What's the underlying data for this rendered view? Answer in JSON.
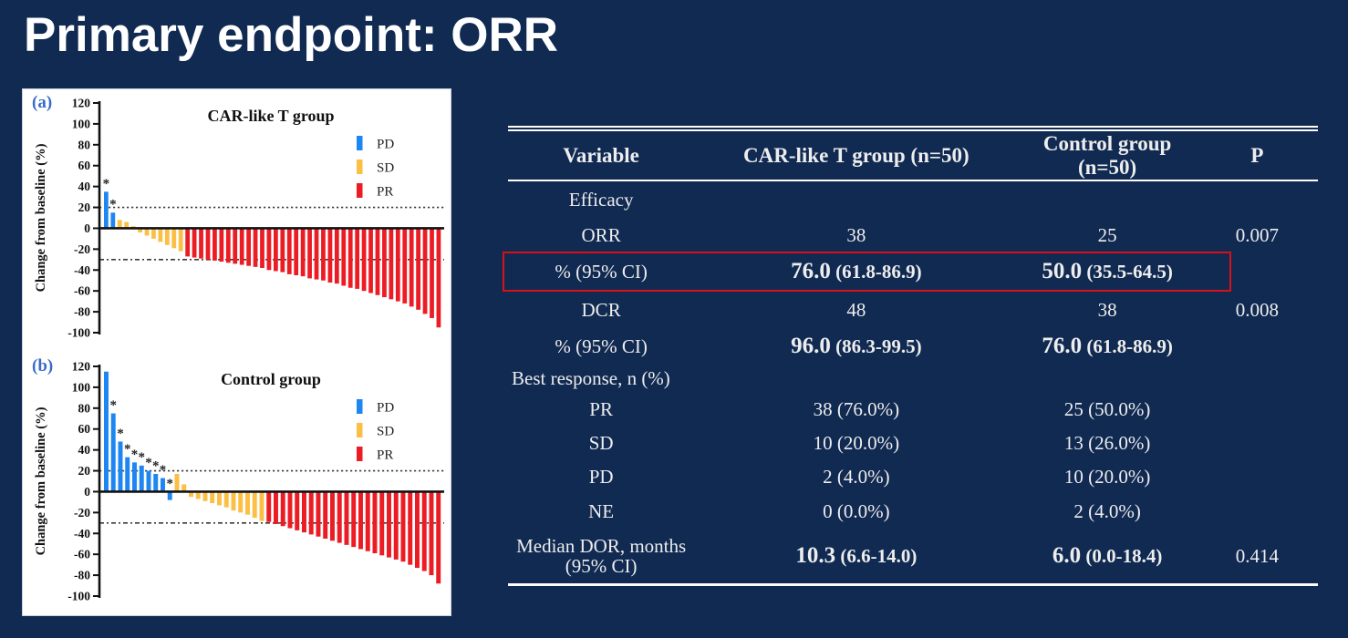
{
  "slide": {
    "title": "Primary endpoint: ORR"
  },
  "colors": {
    "background": "#112a52",
    "title_text": "#ffffff",
    "table_text": "#ededed",
    "table_line": "#ffffff",
    "highlight_box_red": "#da0f18",
    "pd_blue": "#1e86f0",
    "sd_yellow": "#fbbf45",
    "pr_red": "#ec1c24",
    "panel_label_blue": "#3a6bc9"
  },
  "table": {
    "headers": [
      "Variable",
      "CAR-like T group (n=50)",
      "Control group (n=50)",
      "P"
    ],
    "rows": [
      {
        "label": "Efficacy",
        "car": "",
        "control": "",
        "p": "",
        "height": 40
      },
      {
        "label": "ORR",
        "car": "38",
        "control": "25",
        "p": "0.007",
        "height": 38
      },
      {
        "label": "% (95% CI)",
        "car": {
          "lead": "76.0",
          "rest": "(61.8-86.9)"
        },
        "control": {
          "lead": "50.0",
          "rest": "(35.5-64.5)"
        },
        "p": "",
        "bold": true,
        "highlight": true,
        "height": 42
      },
      {
        "label": "DCR",
        "car": "48",
        "control": "38",
        "p": "0.008",
        "height": 42
      },
      {
        "label": "% (95% CI)",
        "car": {
          "lead": "96.0",
          "rest": "(86.3-99.5)"
        },
        "control": {
          "lead": "76.0",
          "rest": "(61.8-86.9)"
        },
        "p": "",
        "bold": true,
        "height": 38
      },
      {
        "label": "Best response, n (%)",
        "car": "",
        "control": "",
        "p": "",
        "label_align": "left",
        "height": 32
      },
      {
        "label": "PR",
        "car": "38 (76.0%)",
        "control": "25 (50.0%)",
        "p": "",
        "height": 37
      },
      {
        "label": "SD",
        "car": "10 (20.0%)",
        "control": "13 (26.0%)",
        "p": "",
        "height": 37
      },
      {
        "label": "PD",
        "car": "2 (4.0%)",
        "control": "10 (20.0%)",
        "p": "",
        "height": 37
      },
      {
        "label": "NE",
        "car": "0 (0.0%)",
        "control": "2 (4.0%)",
        "p": "",
        "height": 38
      },
      {
        "label": "Median DOR, months",
        "label2": "(95% CI)",
        "car": {
          "lead": "10.3",
          "rest": "(6.6-14.0)"
        },
        "control": {
          "lead": "6.0",
          "rest": "(0.0-18.4)"
        },
        "p": "0.414",
        "bold": true,
        "height": 60
      }
    ]
  },
  "chart_data": [
    {
      "type": "bar",
      "panel": "(a)",
      "title": "CAR-like T group",
      "xlabel": "",
      "ylabel": "Change from baseline (%)",
      "ylim": [
        -100,
        120
      ],
      "ytick_step": 20,
      "ref_lines": [
        20,
        -30
      ],
      "grid": false,
      "legend_position": "upper right",
      "groups": [
        {
          "name": "PD",
          "color": "#1e86f0",
          "values": [
            35,
            15
          ]
        },
        {
          "name": "SD",
          "color": "#fbbf45",
          "values": [
            8,
            6,
            2,
            -4,
            -7,
            -10,
            -13,
            -16,
            -19,
            -22
          ]
        },
        {
          "name": "PR",
          "color": "#ec1c24",
          "values": [
            -27,
            -28,
            -29,
            -30,
            -31,
            -32,
            -33,
            -34,
            -35,
            -36,
            -37,
            -38,
            -40,
            -41,
            -42,
            -44,
            -45,
            -46,
            -48,
            -49,
            -50,
            -52,
            -53,
            -55,
            -57,
            -58,
            -60,
            -62,
            -64,
            -66,
            -68,
            -70,
            -72,
            -75,
            -78,
            -82,
            -86,
            -95
          ]
        }
      ],
      "asterisk_indices": [
        0,
        1
      ]
    },
    {
      "type": "bar",
      "panel": "(b)",
      "title": "Control group",
      "xlabel": "",
      "ylabel": "Change from baseline (%)",
      "ylim": [
        -100,
        120
      ],
      "ytick_step": 20,
      "ref_lines": [
        20,
        -30
      ],
      "grid": false,
      "legend_position": "upper right",
      "groups": [
        {
          "name": "PD",
          "color": "#1e86f0",
          "values": [
            115,
            75,
            48,
            33,
            28,
            25,
            20,
            17,
            13,
            -8
          ]
        },
        {
          "name": "SD",
          "color": "#fbbf45",
          "values": [
            17,
            7,
            -5,
            -7,
            -9,
            -11,
            -13,
            -15,
            -18,
            -20,
            -22,
            -25,
            -28
          ]
        },
        {
          "name": "PR",
          "color": "#ec1c24",
          "values": [
            -29,
            -31,
            -33,
            -35,
            -37,
            -39,
            -41,
            -43,
            -45,
            -47,
            -49,
            -51,
            -53,
            -55,
            -57,
            -59,
            -61,
            -63,
            -65,
            -67,
            -70,
            -73,
            -76,
            -80,
            -88
          ]
        }
      ],
      "asterisk_indices": [
        1,
        2,
        3,
        4,
        5,
        6,
        7,
        8,
        9
      ]
    }
  ]
}
